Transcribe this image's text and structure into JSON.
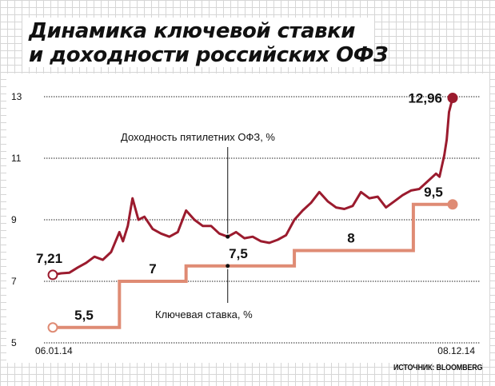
{
  "title_lines": [
    "Динамика ключевой ставки",
    "и доходности российских ОФЗ"
  ],
  "source": "ИСТОЧНИК: BLOOMBERG",
  "colors": {
    "yield": "#9b1b2e",
    "key_rate": "#df8b74",
    "grid": "#d6d6d6"
  },
  "chart_data": {
    "type": "line",
    "x_tick_labels": [
      "06.01.14",
      "08.12.14"
    ],
    "y_ticks": [
      5,
      7,
      9,
      11,
      13
    ],
    "ylim": [
      5,
      13
    ],
    "xlim": [
      "2014-01-06",
      "2014-12-08"
    ],
    "grid": "horizontal dotted",
    "series": [
      {
        "name": "Доходность пятилетних ОФЗ, %",
        "start_label": "7,21",
        "end_label": "12,96",
        "points": [
          [
            "2014-01-06",
            7.21
          ],
          [
            "2014-01-13",
            7.26
          ],
          [
            "2014-01-20",
            7.28
          ],
          [
            "2014-01-27",
            7.45
          ],
          [
            "2014-02-03",
            7.6
          ],
          [
            "2014-02-10",
            7.8
          ],
          [
            "2014-02-17",
            7.7
          ],
          [
            "2014-02-24",
            7.95
          ],
          [
            "2014-03-03",
            8.6
          ],
          [
            "2014-03-06",
            8.3
          ],
          [
            "2014-03-10",
            8.8
          ],
          [
            "2014-03-14",
            9.7
          ],
          [
            "2014-03-19",
            9.0
          ],
          [
            "2014-03-24",
            9.1
          ],
          [
            "2014-03-31",
            8.7
          ],
          [
            "2014-04-07",
            8.55
          ],
          [
            "2014-04-14",
            8.45
          ],
          [
            "2014-04-21",
            8.6
          ],
          [
            "2014-04-28",
            9.3
          ],
          [
            "2014-05-05",
            9.0
          ],
          [
            "2014-05-12",
            8.8
          ],
          [
            "2014-05-19",
            8.8
          ],
          [
            "2014-05-26",
            8.55
          ],
          [
            "2014-06-02",
            8.45
          ],
          [
            "2014-06-09",
            8.6
          ],
          [
            "2014-06-16",
            8.4
          ],
          [
            "2014-06-23",
            8.45
          ],
          [
            "2014-06-30",
            8.3
          ],
          [
            "2014-07-07",
            8.25
          ],
          [
            "2014-07-14",
            8.35
          ],
          [
            "2014-07-21",
            8.5
          ],
          [
            "2014-07-28",
            9.0
          ],
          [
            "2014-08-04",
            9.3
          ],
          [
            "2014-08-11",
            9.55
          ],
          [
            "2014-08-18",
            9.9
          ],
          [
            "2014-08-25",
            9.6
          ],
          [
            "2014-09-01",
            9.4
          ],
          [
            "2014-09-08",
            9.35
          ],
          [
            "2014-09-15",
            9.45
          ],
          [
            "2014-09-22",
            9.9
          ],
          [
            "2014-09-29",
            9.7
          ],
          [
            "2014-10-06",
            9.75
          ],
          [
            "2014-10-13",
            9.4
          ],
          [
            "2014-10-20",
            9.6
          ],
          [
            "2014-10-27",
            9.8
          ],
          [
            "2014-11-03",
            9.95
          ],
          [
            "2014-11-10",
            10.0
          ],
          [
            "2014-11-17",
            10.25
          ],
          [
            "2014-11-24",
            10.5
          ],
          [
            "2014-11-27",
            10.4
          ],
          [
            "2014-12-01",
            11.1
          ],
          [
            "2014-12-03",
            11.6
          ],
          [
            "2014-12-05",
            12.5
          ],
          [
            "2014-12-08",
            12.96
          ]
        ]
      },
      {
        "name": "Ключевая ставка, %",
        "step_labels": [
          "5,5",
          "7",
          "7,5",
          "8",
          "9,5"
        ],
        "steps": [
          [
            "2014-01-06",
            5.5
          ],
          [
            "2014-03-03",
            7.0
          ],
          [
            "2014-04-28",
            7.5
          ],
          [
            "2014-07-28",
            8.0
          ],
          [
            "2014-11-05",
            9.5
          ],
          [
            "2014-12-08",
            9.5
          ]
        ]
      }
    ]
  }
}
